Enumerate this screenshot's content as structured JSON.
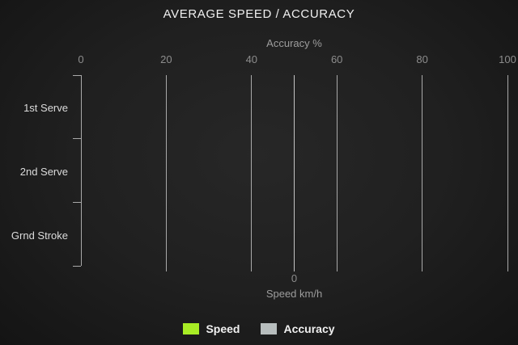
{
  "chart_data": {
    "type": "bar",
    "orientation": "horizontal",
    "title": "AVERAGE SPEED / ACCURACY",
    "categories": [
      "1st Serve",
      "2nd Serve",
      "Grnd Stroke"
    ],
    "series": [
      {
        "name": "Speed",
        "color": "#a8ec25",
        "axis": "bottom",
        "values": [
          0,
          0,
          0
        ]
      },
      {
        "name": "Accuracy",
        "color": "#b7bdbd",
        "axis": "top",
        "values": [
          0,
          0,
          0
        ]
      }
    ],
    "top_axis": {
      "label": "Accuracy %",
      "ticks": [
        "0",
        "20",
        "40",
        "60",
        "80",
        "100"
      ],
      "range": [
        0,
        100
      ]
    },
    "bottom_axis": {
      "label": "Speed km/h",
      "ticks": [
        "0"
      ]
    },
    "grid": true,
    "legend_position": "bottom"
  },
  "legend": {
    "items": [
      {
        "label": "Speed",
        "color": "#a8ec25"
      },
      {
        "label": "Accuracy",
        "color": "#b7bdbd"
      }
    ]
  },
  "colors": {
    "speed_accent": "#a8ec25",
    "accuracy_accent": "#b7bdbd"
  }
}
